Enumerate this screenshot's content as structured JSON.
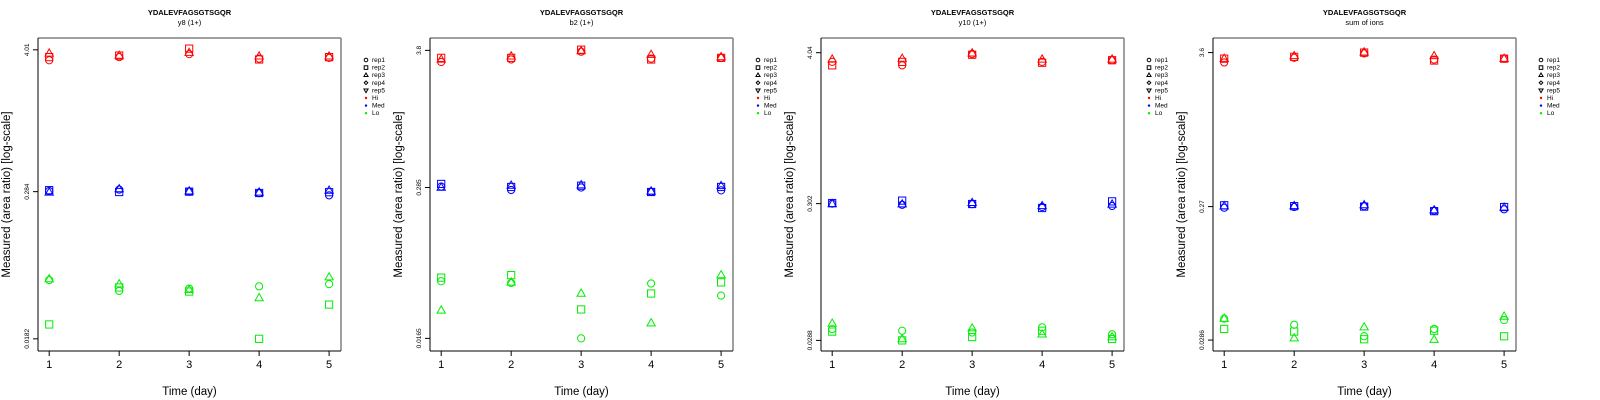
{
  "figure": {
    "colors": {
      "Hi": "#ff0000",
      "Med": "#0000ff",
      "Lo": "#00ee00",
      "axis": "#000000",
      "frame": "#808080"
    }
  },
  "chart_data": [
    {
      "type": "scatter",
      "title": "YDALEVFAGSGTSGQR",
      "subtitle": "y8 (1+)",
      "xlabel": "Time (day)",
      "ylabel": "Measured (area ratio) [log-scale]",
      "y_scale": "log",
      "x_ticks": [
        1,
        2,
        3,
        4,
        5
      ],
      "y_ticks": [
        {
          "value": 4.01,
          "label": "4.01"
        },
        {
          "value": 0.284,
          "label": "0.284"
        },
        {
          "value": 0.0182,
          "label": "0.0182"
        }
      ],
      "ylim": [
        0.0145,
        5.0
      ],
      "xlim": [
        0.84,
        5.17
      ],
      "legend": {
        "position": "right",
        "entries": [
          {
            "label": "rep1",
            "symbol": "circle"
          },
          {
            "label": "rep2",
            "symbol": "square"
          },
          {
            "label": "rep3",
            "symbol": "triangle-up"
          },
          {
            "label": "rep4",
            "symbol": "diamond"
          },
          {
            "label": "rep5",
            "symbol": "triangle-down"
          },
          {
            "label": "Hi",
            "symbol": "dot",
            "color": "Hi"
          },
          {
            "label": "Med",
            "symbol": "dot",
            "color": "Med"
          },
          {
            "label": "Lo",
            "symbol": "dot",
            "color": "Lo"
          }
        ]
      },
      "series": [
        {
          "name": "Hi rep1",
          "level": "Hi",
          "symbol": "circle",
          "x": [
            1,
            2,
            3,
            4,
            5
          ],
          "y": [
            3.3,
            3.5,
            3.7,
            3.4,
            3.45
          ]
        },
        {
          "name": "Hi rep2",
          "level": "Hi",
          "symbol": "square",
          "x": [
            1,
            2,
            3,
            4,
            5
          ],
          "y": [
            3.5,
            3.6,
            4.1,
            3.35,
            3.5
          ]
        },
        {
          "name": "Hi rep3",
          "level": "Hi",
          "symbol": "triangle-up",
          "x": [
            1,
            2,
            3,
            4,
            5
          ],
          "y": [
            3.75,
            3.6,
            3.8,
            3.55,
            3.55
          ]
        },
        {
          "name": "Med rep1",
          "level": "Med",
          "symbol": "circle",
          "x": [
            1,
            2,
            3,
            4,
            5
          ],
          "y": [
            0.287,
            0.295,
            0.284,
            0.276,
            0.265
          ]
        },
        {
          "name": "Med rep2",
          "level": "Med",
          "symbol": "square",
          "x": [
            1,
            2,
            3,
            4,
            5
          ],
          "y": [
            0.292,
            0.282,
            0.284,
            0.277,
            0.281
          ]
        },
        {
          "name": "Med rep3",
          "level": "Med",
          "symbol": "triangle-up",
          "x": [
            1,
            2,
            3,
            4,
            5
          ],
          "y": [
            0.28,
            0.298,
            0.286,
            0.28,
            0.29
          ]
        },
        {
          "name": "Lo rep1",
          "level": "Lo",
          "symbol": "circle",
          "x": [
            1,
            2,
            3,
            4,
            5
          ],
          "y": [
            0.0545,
            0.0445,
            0.0465,
            0.0485,
            0.0505
          ]
        },
        {
          "name": "Lo rep2",
          "level": "Lo",
          "symbol": "square",
          "x": [
            1,
            2,
            3,
            4,
            5
          ],
          "y": [
            0.0238,
            0.0475,
            0.044,
            0.0182,
            0.0345
          ]
        },
        {
          "name": "Lo rep3",
          "level": "Lo",
          "symbol": "triangle-up",
          "x": [
            1,
            2,
            3,
            4,
            5
          ],
          "y": [
            0.0555,
            0.0505,
            0.0455,
            0.039,
            0.0575
          ]
        }
      ]
    },
    {
      "type": "scatter",
      "title": "YDALEVFAGSGTSGQR",
      "subtitle": "b2 (1+)",
      "xlabel": "Time (day)",
      "ylabel": "Measured (area ratio) [log-scale]",
      "y_scale": "log",
      "x_ticks": [
        1,
        2,
        3,
        4,
        5
      ],
      "y_ticks": [
        {
          "value": 3.8,
          "label": "3.8"
        },
        {
          "value": 0.285,
          "label": "0.285"
        },
        {
          "value": 0.0165,
          "label": "0.0165"
        }
      ],
      "ylim": [
        0.013,
        4.8
      ],
      "xlim": [
        0.84,
        5.17
      ],
      "legend": {
        "position": "right",
        "entries": [
          {
            "label": "rep1",
            "symbol": "circle"
          },
          {
            "label": "rep2",
            "symbol": "square"
          },
          {
            "label": "rep3",
            "symbol": "triangle-up"
          },
          {
            "label": "rep4",
            "symbol": "diamond"
          },
          {
            "label": "rep5",
            "symbol": "triangle-down"
          },
          {
            "label": "Hi",
            "symbol": "dot",
            "color": "Hi"
          },
          {
            "label": "Med",
            "symbol": "dot",
            "color": "Med"
          },
          {
            "label": "Lo",
            "symbol": "dot",
            "color": "Lo"
          }
        ]
      },
      "series": [
        {
          "name": "Hi rep1",
          "level": "Hi",
          "symbol": "circle",
          "x": [
            1,
            2,
            3,
            4,
            5
          ],
          "y": [
            3.05,
            3.2,
            3.7,
            3.25,
            3.3
          ]
        },
        {
          "name": "Hi rep2",
          "level": "Hi",
          "symbol": "square",
          "x": [
            1,
            2,
            3,
            4,
            5
          ],
          "y": [
            3.3,
            3.3,
            3.85,
            3.2,
            3.3
          ]
        },
        {
          "name": "Hi rep3",
          "level": "Hi",
          "symbol": "triangle-up",
          "x": [
            1,
            2,
            3,
            4,
            5
          ],
          "y": [
            3.2,
            3.4,
            3.75,
            3.5,
            3.35
          ]
        },
        {
          "name": "Med rep1",
          "level": "Med",
          "symbol": "circle",
          "x": [
            1,
            2,
            3,
            4,
            5
          ],
          "y": [
            0.29,
            0.272,
            0.285,
            0.263,
            0.27
          ]
        },
        {
          "name": "Med rep2",
          "level": "Med",
          "symbol": "square",
          "x": [
            1,
            2,
            3,
            4,
            5
          ],
          "y": [
            0.305,
            0.288,
            0.295,
            0.262,
            0.288
          ]
        },
        {
          "name": "Med rep3",
          "level": "Med",
          "symbol": "triangle-up",
          "x": [
            1,
            2,
            3,
            4,
            5
          ],
          "y": [
            0.285,
            0.296,
            0.298,
            0.265,
            0.294
          ]
        },
        {
          "name": "Lo rep1",
          "level": "Lo",
          "symbol": "circle",
          "x": [
            1,
            2,
            3,
            4,
            5
          ],
          "y": [
            0.0485,
            0.047,
            0.0165,
            0.0465,
            0.037
          ]
        },
        {
          "name": "Lo rep2",
          "level": "Lo",
          "symbol": "square",
          "x": [
            1,
            2,
            3,
            4,
            5
          ],
          "y": [
            0.052,
            0.0545,
            0.0285,
            0.0385,
            0.0475
          ]
        },
        {
          "name": "Lo rep3",
          "level": "Lo",
          "symbol": "triangle-up",
          "x": [
            1,
            2,
            3,
            4,
            5
          ],
          "y": [
            0.028,
            0.0475,
            0.0385,
            0.022,
            0.0545
          ]
        }
      ]
    },
    {
      "type": "scatter",
      "title": "YDALEVFAGSGTSGQR",
      "subtitle": "y10 (1+)",
      "xlabel": "Time (day)",
      "ylabel": "Measured (area ratio) [log-scale]",
      "y_scale": "log",
      "x_ticks": [
        1,
        2,
        3,
        4,
        5
      ],
      "y_ticks": [
        {
          "value": 4.04,
          "label": "4.04"
        },
        {
          "value": 0.302,
          "label": "0.302"
        },
        {
          "value": 0.0288,
          "label": "0.0288"
        }
      ],
      "ylim": [
        0.024,
        5.2
      ],
      "xlim": [
        0.84,
        5.17
      ],
      "legend": {
        "position": "right",
        "entries": [
          {
            "label": "rep1",
            "symbol": "circle"
          },
          {
            "label": "rep2",
            "symbol": "square"
          },
          {
            "label": "rep3",
            "symbol": "triangle-up"
          },
          {
            "label": "rep4",
            "symbol": "diamond"
          },
          {
            "label": "rep5",
            "symbol": "triangle-down"
          },
          {
            "label": "Hi",
            "symbol": "dot",
            "color": "Hi"
          },
          {
            "label": "Med",
            "symbol": "dot",
            "color": "Med"
          },
          {
            "label": "Lo",
            "symbol": "dot",
            "color": "Lo"
          }
        ]
      },
      "series": [
        {
          "name": "Hi rep1",
          "level": "Hi",
          "symbol": "circle",
          "x": [
            1,
            2,
            3,
            4,
            5
          ],
          "y": [
            3.45,
            3.25,
            3.95,
            3.45,
            3.55
          ]
        },
        {
          "name": "Hi rep2",
          "level": "Hi",
          "symbol": "square",
          "x": [
            1,
            2,
            3,
            4,
            5
          ],
          "y": [
            3.25,
            3.45,
            3.9,
            3.4,
            3.55
          ]
        },
        {
          "name": "Hi rep3",
          "level": "Hi",
          "symbol": "triangle-up",
          "x": [
            1,
            2,
            3,
            4,
            5
          ],
          "y": [
            3.6,
            3.65,
            4.0,
            3.6,
            3.6
          ]
        },
        {
          "name": "Med rep1",
          "level": "Med",
          "symbol": "circle",
          "x": [
            1,
            2,
            3,
            4,
            5
          ],
          "y": [
            0.302,
            0.296,
            0.299,
            0.285,
            0.29
          ]
        },
        {
          "name": "Med rep2",
          "level": "Med",
          "symbol": "square",
          "x": [
            1,
            2,
            3,
            4,
            5
          ],
          "y": [
            0.305,
            0.318,
            0.3,
            0.28,
            0.314
          ]
        },
        {
          "name": "Med rep3",
          "level": "Med",
          "symbol": "triangle-up",
          "x": [
            1,
            2,
            3,
            4,
            5
          ],
          "y": [
            0.3,
            0.299,
            0.306,
            0.29,
            0.298
          ]
        },
        {
          "name": "Lo rep1",
          "level": "Lo",
          "symbol": "circle",
          "x": [
            1,
            2,
            3,
            4,
            5
          ],
          "y": [
            0.035,
            0.034,
            0.033,
            0.036,
            0.032
          ]
        },
        {
          "name": "Lo rep2",
          "level": "Lo",
          "symbol": "square",
          "x": [
            1,
            2,
            3,
            4,
            5
          ],
          "y": [
            0.0335,
            0.0288,
            0.0305,
            0.034,
            0.0295
          ]
        },
        {
          "name": "Lo rep3",
          "level": "Lo",
          "symbol": "triangle-up",
          "x": [
            1,
            2,
            3,
            4,
            5
          ],
          "y": [
            0.0385,
            0.0295,
            0.0355,
            0.032,
            0.0305
          ]
        }
      ]
    },
    {
      "type": "scatter",
      "title": "YDALEVFAGSGTSGQR",
      "subtitle": "sum of ions",
      "xlabel": "Time (day)",
      "ylabel": "Measured (area ratio) [log-scale]",
      "y_scale": "log",
      "x_ticks": [
        1,
        2,
        3,
        4,
        5
      ],
      "y_ticks": [
        {
          "value": 3.6,
          "label": "3.6"
        },
        {
          "value": 0.27,
          "label": "0.27"
        },
        {
          "value": 0.0286,
          "label": "0.0286"
        }
      ],
      "ylim": [
        0.0238,
        4.6
      ],
      "xlim": [
        0.84,
        5.17
      ],
      "legend": {
        "position": "right",
        "entries": [
          {
            "label": "rep1",
            "symbol": "circle"
          },
          {
            "label": "rep2",
            "symbol": "square"
          },
          {
            "label": "rep3",
            "symbol": "triangle-up"
          },
          {
            "label": "rep4",
            "symbol": "diamond"
          },
          {
            "label": "rep5",
            "symbol": "triangle-down"
          },
          {
            "label": "Hi",
            "symbol": "dot",
            "color": "Hi"
          },
          {
            "label": "Med",
            "symbol": "dot",
            "color": "Med"
          },
          {
            "label": "Lo",
            "symbol": "dot",
            "color": "Lo"
          }
        ]
      },
      "series": [
        {
          "name": "Hi rep1",
          "level": "Hi",
          "symbol": "circle",
          "x": [
            1,
            2,
            3,
            4,
            5
          ],
          "y": [
            3.05,
            3.3,
            3.55,
            3.2,
            3.25
          ]
        },
        {
          "name": "Hi rep2",
          "level": "Hi",
          "symbol": "square",
          "x": [
            1,
            2,
            3,
            4,
            5
          ],
          "y": [
            3.25,
            3.35,
            3.6,
            3.15,
            3.25
          ]
        },
        {
          "name": "Hi rep3",
          "level": "Hi",
          "symbol": "triangle-up",
          "x": [
            1,
            2,
            3,
            4,
            5
          ],
          "y": [
            3.25,
            3.4,
            3.62,
            3.4,
            3.25
          ]
        },
        {
          "name": "Med rep1",
          "level": "Med",
          "symbol": "circle",
          "x": [
            1,
            2,
            3,
            4,
            5
          ],
          "y": [
            0.265,
            0.268,
            0.272,
            0.252,
            0.258
          ]
        },
        {
          "name": "Med rep2",
          "level": "Med",
          "symbol": "square",
          "x": [
            1,
            2,
            3,
            4,
            5
          ],
          "y": [
            0.276,
            0.272,
            0.27,
            0.25,
            0.268
          ]
        },
        {
          "name": "Med rep3",
          "level": "Med",
          "symbol": "triangle-up",
          "x": [
            1,
            2,
            3,
            4,
            5
          ],
          "y": [
            0.272,
            0.273,
            0.277,
            0.254,
            0.266
          ]
        },
        {
          "name": "Lo rep1",
          "level": "Lo",
          "symbol": "circle",
          "x": [
            1,
            2,
            3,
            4,
            5
          ],
          "y": [
            0.041,
            0.037,
            0.0305,
            0.0345,
            0.04
          ]
        },
        {
          "name": "Lo rep2",
          "level": "Lo",
          "symbol": "square",
          "x": [
            1,
            2,
            3,
            4,
            5
          ],
          "y": [
            0.0345,
            0.033,
            0.029,
            0.0335,
            0.0305
          ]
        },
        {
          "name": "Lo rep3",
          "level": "Lo",
          "symbol": "triangle-up",
          "x": [
            1,
            2,
            3,
            4,
            5
          ],
          "y": [
            0.041,
            0.0295,
            0.0355,
            0.0288,
            0.0425
          ]
        }
      ]
    }
  ]
}
